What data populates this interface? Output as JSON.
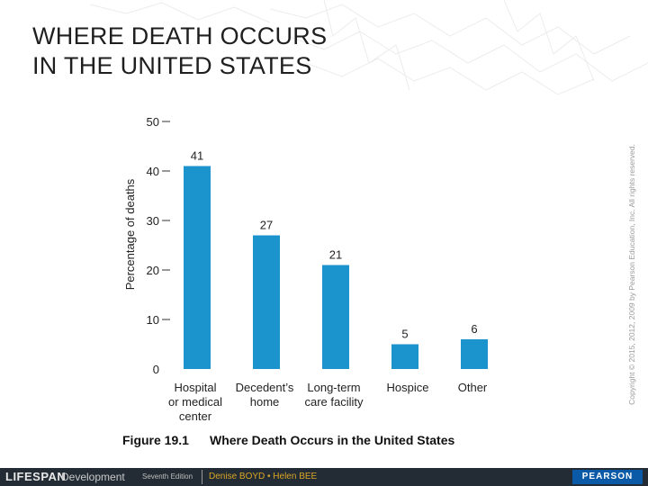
{
  "slide": {
    "title_line1": "WHERE DEATH OCCURS",
    "title_line2": "IN THE UNITED STATES",
    "copyright": "Copyright © 2015, 2012, 2009 by Pearson Education, Inc. All rights reserved."
  },
  "figure": {
    "label": "Figure 19.1",
    "caption": "Where Death Occurs in the United States"
  },
  "footer": {
    "brand_main": "LIFESPAN",
    "brand_sub": "Development",
    "edition": "Seventh Edition",
    "authors": "Denise BOYD • Helen BEE",
    "publisher": "PEARSON"
  },
  "colors": {
    "bar": "#1b93cc",
    "footer_bg": "#232c34",
    "pearson": "#0b5aa7"
  },
  "chart_data": {
    "type": "bar",
    "title": "",
    "xlabel": "",
    "ylabel": "Percentage of deaths",
    "ylim": [
      0,
      50
    ],
    "yticks": [
      0,
      10,
      20,
      30,
      40,
      50
    ],
    "grid": false,
    "categories": [
      [
        "Hospital",
        "or medical",
        "center"
      ],
      [
        "Decedent’s",
        "home"
      ],
      [
        "Long-term",
        "care facility"
      ],
      [
        "Hospice"
      ],
      [
        "Other"
      ]
    ],
    "values": [
      41,
      27,
      21,
      5,
      6
    ],
    "data_labels": [
      "41",
      "27",
      "21",
      "5",
      "6"
    ]
  }
}
